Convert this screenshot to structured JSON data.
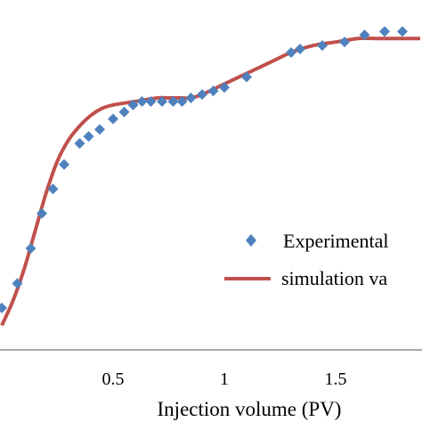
{
  "chart_data": {
    "type": "scatter",
    "xlabel": "Injection volume (PV)",
    "ylabel": "",
    "title": "",
    "xlim": [
      0,
      1.88
    ],
    "ylim": [
      0,
      1
    ],
    "x_ticks": [
      "0.5",
      "1",
      "1.5"
    ],
    "grid": false,
    "legend_position": "lower-right",
    "colors": {
      "marker": "#4f81bd",
      "line": "#c0504d"
    },
    "series": [
      {
        "name": "Experimental",
        "kind": "markers",
        "points": [
          [
            0.0,
            0.12
          ],
          [
            0.07,
            0.19
          ],
          [
            0.13,
            0.29
          ],
          [
            0.18,
            0.39
          ],
          [
            0.23,
            0.46
          ],
          [
            0.28,
            0.53
          ],
          [
            0.35,
            0.59
          ],
          [
            0.39,
            0.61
          ],
          [
            0.44,
            0.63
          ],
          [
            0.5,
            0.66
          ],
          [
            0.55,
            0.68
          ],
          [
            0.59,
            0.7
          ],
          [
            0.63,
            0.71
          ],
          [
            0.67,
            0.71
          ],
          [
            0.72,
            0.71
          ],
          [
            0.77,
            0.71
          ],
          [
            0.81,
            0.71
          ],
          [
            0.85,
            0.72
          ],
          [
            0.9,
            0.73
          ],
          [
            0.95,
            0.74
          ],
          [
            1.0,
            0.75
          ],
          [
            1.1,
            0.78
          ],
          [
            1.3,
            0.85
          ],
          [
            1.34,
            0.86
          ],
          [
            1.44,
            0.87
          ],
          [
            1.54,
            0.88
          ],
          [
            1.63,
            0.9
          ],
          [
            1.72,
            0.91
          ],
          [
            1.8,
            0.91
          ]
        ]
      },
      {
        "name": "simulation va",
        "kind": "line",
        "points": [
          [
            0.0,
            0.07
          ],
          [
            0.05,
            0.14
          ],
          [
            0.1,
            0.23
          ],
          [
            0.15,
            0.34
          ],
          [
            0.2,
            0.45
          ],
          [
            0.25,
            0.54
          ],
          [
            0.3,
            0.6
          ],
          [
            0.35,
            0.64
          ],
          [
            0.4,
            0.67
          ],
          [
            0.45,
            0.69
          ],
          [
            0.5,
            0.7
          ],
          [
            0.6,
            0.71
          ],
          [
            0.7,
            0.72
          ],
          [
            0.75,
            0.72
          ],
          [
            0.8,
            0.72
          ],
          [
            0.85,
            0.72
          ],
          [
            0.9,
            0.73
          ],
          [
            1.0,
            0.76
          ],
          [
            1.1,
            0.79
          ],
          [
            1.2,
            0.82
          ],
          [
            1.3,
            0.85
          ],
          [
            1.4,
            0.87
          ],
          [
            1.5,
            0.88
          ],
          [
            1.6,
            0.89
          ],
          [
            1.7,
            0.89
          ],
          [
            1.8,
            0.89
          ],
          [
            1.88,
            0.89
          ]
        ]
      }
    ]
  }
}
